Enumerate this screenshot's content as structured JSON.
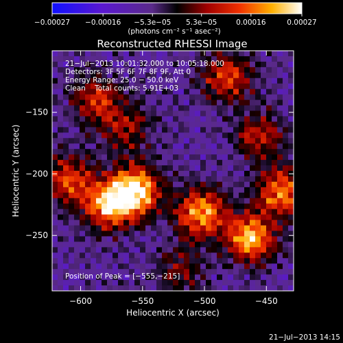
{
  "chart_data": {
    "type": "heatmap",
    "title": "Reconstructed RHESSI Image",
    "xlabel": "Heliocentric X (arcsec)",
    "ylabel": "Heliocentric Y (arcsec)",
    "xlim": [
      -623,
      -428
    ],
    "ylim": [
      -295,
      -100
    ],
    "xticks": [
      -600,
      -550,
      -500,
      -450
    ],
    "xtick_labels": [
      "−600",
      "−550",
      "−500",
      "−450"
    ],
    "yticks": [
      -250,
      -200,
      -150
    ],
    "ytick_labels": [
      "−250",
      "−200",
      "−150"
    ],
    "colorbar": {
      "range": [
        -0.00027,
        0.00027
      ],
      "ticks": [
        -0.00027,
        -0.00016,
        -5.3e-05,
        5.3e-05,
        0.00016,
        0.00027
      ],
      "tick_labels": [
        "−0.00027",
        "−0.00016",
        "−5.3e−05",
        "5.3e−05",
        "0.00016",
        "0.00027"
      ],
      "unit_label": "(photons cm⁻² s⁻¹ asec⁻²)"
    },
    "annotations": [
      "21−Jul−2013 10:01:32.000 to 10:05:18.000",
      "Detectors: 3F 5F 6F 7F 8F 9F, Att 0",
      "Energy Range: 25.0 − 50.0 keV",
      "Clean    Total counts: 5.91E+03"
    ],
    "peak_label": "Position of Peak = [−555,−215]",
    "peak": [
      -555,
      -215
    ],
    "bright_sources": [
      {
        "x": -556,
        "y": -214,
        "level": 1.0
      },
      {
        "x": -578,
        "y": -226,
        "level": 0.75
      },
      {
        "x": -610,
        "y": -205,
        "level": 0.6
      },
      {
        "x": -503,
        "y": -232,
        "level": 0.8
      },
      {
        "x": -463,
        "y": -252,
        "level": 0.85
      },
      {
        "x": -437,
        "y": -215,
        "level": 0.75
      },
      {
        "x": -482,
        "y": -122,
        "level": 0.6
      },
      {
        "x": -456,
        "y": -170,
        "level": 0.5
      },
      {
        "x": -588,
        "y": -140,
        "level": 0.55
      },
      {
        "x": -563,
        "y": -163,
        "level": 0.4
      },
      {
        "x": -520,
        "y": -280,
        "level": 0.35
      }
    ],
    "colormap": "rainbow-dark: blue-violet negative, black zero, red-orange-yellow-white positive"
  },
  "footer_timestamp": "21−Jul−2013 14:15"
}
